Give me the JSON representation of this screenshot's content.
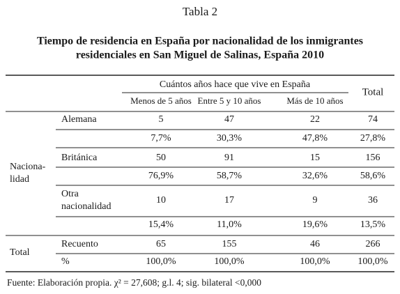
{
  "title": "Tabla 2",
  "subtitle": [
    "Tiempo de residencia en España por nacionalidad de los inmigrantes",
    "residenciales en San Miguel de Salinas, España 2010"
  ],
  "table": {
    "group_header": "Cuántos años hace que vive en España",
    "columns": [
      "Menos de 5 años",
      "Entre 5 y 10 años",
      "Más de 10 años",
      "Total"
    ],
    "row_groups": [
      {
        "label": [
          "Naciona-",
          "lidad"
        ]
      },
      {
        "label": [
          "Total"
        ]
      }
    ],
    "rows": [
      {
        "label": [
          "Alemana"
        ],
        "cells": [
          "5",
          "47",
          "22",
          "74"
        ]
      },
      {
        "cells": [
          "7,7%",
          "30,3%",
          "47,8%",
          "27,8%"
        ]
      },
      {
        "label": [
          "Británica"
        ],
        "cells": [
          "50",
          "91",
          "15",
          "156"
        ]
      },
      {
        "cells": [
          "76,9%",
          "58,7%",
          "32,6%",
          "58,6%"
        ]
      },
      {
        "label": [
          "Otra",
          "nacionalidad"
        ],
        "cells": [
          "10",
          "17",
          "9",
          "36"
        ]
      },
      {
        "cells": [
          "15,4%",
          "11,0%",
          "19,6%",
          "13,5%"
        ]
      },
      {
        "label": [
          "Recuento"
        ],
        "cells": [
          "65",
          "155",
          "46",
          "266"
        ]
      },
      {
        "label": [
          "%"
        ],
        "cells": [
          "100,0%",
          "100,0%",
          "100,0%",
          "100,0%"
        ]
      }
    ]
  },
  "footer": "Fuente: Elaboración propia. χ² = 27,608; g.l. 4; sig. bilateral <0,000"
}
